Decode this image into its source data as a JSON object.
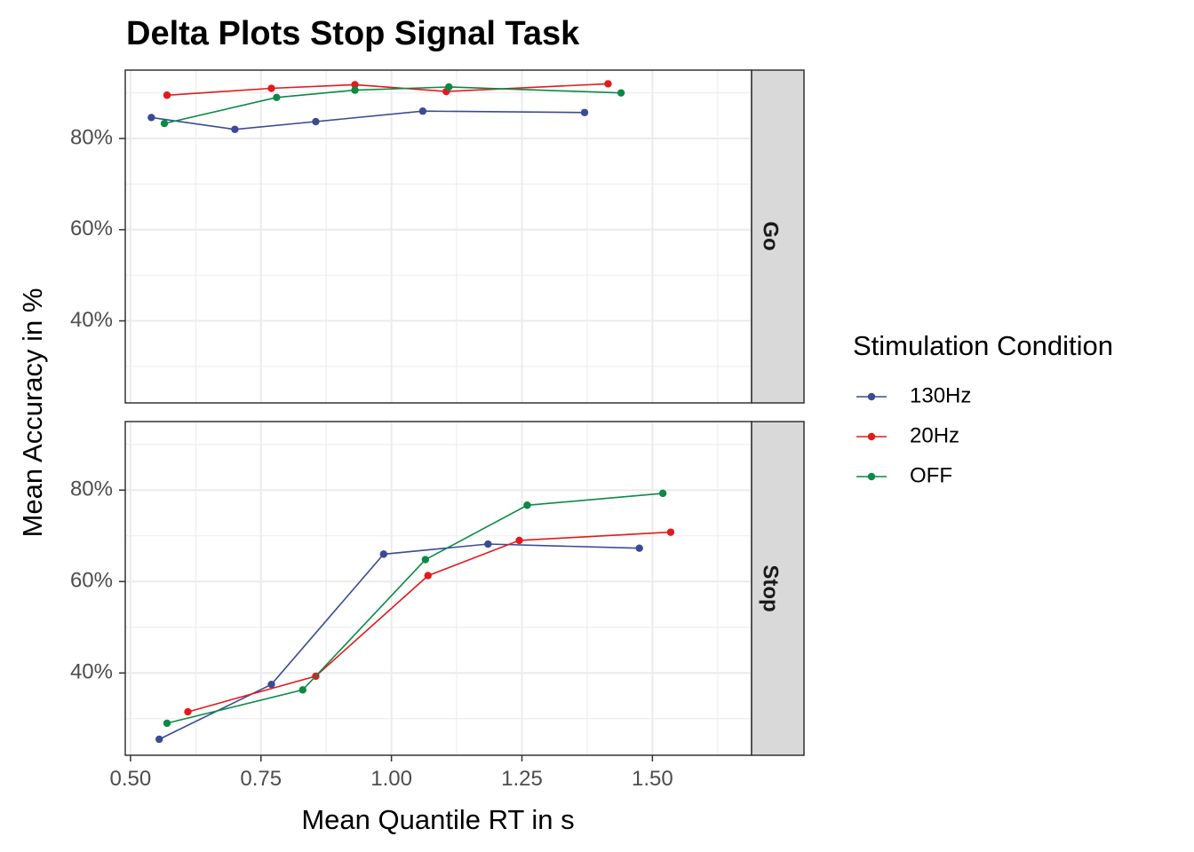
{
  "chart_data": {
    "type": "line",
    "title": "Delta Plots Stop Signal Task",
    "xlabel": "Mean Quantile RT in s",
    "ylabel": "Mean Accuracy in %",
    "xlim": [
      0.49,
      1.69
    ],
    "ylim": [
      22,
      95
    ],
    "x_ticks": [
      0.5,
      0.75,
      1.0,
      1.25,
      1.5
    ],
    "x_tick_labels": [
      "0.50",
      "0.75",
      "1.00",
      "1.25",
      "1.50"
    ],
    "y_ticks": [
      40,
      60,
      80
    ],
    "y_tick_labels": [
      "40%",
      "60%",
      "80%"
    ],
    "grid": true,
    "legend": {
      "title": "Stimulation Condition",
      "position": "right"
    },
    "facets": [
      {
        "label": "Go",
        "series": [
          {
            "name": "130Hz",
            "color": "#3b4a94",
            "x": [
              0.54,
              0.7,
              0.855,
              1.06,
              1.37
            ],
            "y": [
              84.6,
              82.0,
              83.7,
              86.0,
              85.7
            ]
          },
          {
            "name": "20Hz",
            "color": "#e31a1c",
            "x": [
              0.57,
              0.77,
              0.93,
              1.105,
              1.415
            ],
            "y": [
              89.5,
              91.0,
              91.8,
              90.3,
              92.0
            ]
          },
          {
            "name": "OFF",
            "color": "#0b8a45",
            "x": [
              0.565,
              0.78,
              0.93,
              1.11,
              1.44
            ],
            "y": [
              83.3,
              89.0,
              90.6,
              91.3,
              90.0
            ]
          }
        ]
      },
      {
        "label": "Stop",
        "series": [
          {
            "name": "130Hz",
            "color": "#3b4a94",
            "x": [
              0.555,
              0.77,
              0.985,
              1.185,
              1.475
            ],
            "y": [
              25.5,
              37.5,
              66.0,
              68.2,
              67.3
            ]
          },
          {
            "name": "20Hz",
            "color": "#e31a1c",
            "x": [
              0.61,
              0.855,
              1.07,
              1.245,
              1.535
            ],
            "y": [
              31.5,
              39.3,
              61.3,
              69.0,
              70.8
            ]
          },
          {
            "name": "OFF",
            "color": "#0b8a45",
            "x": [
              0.57,
              0.83,
              1.065,
              1.26,
              1.52
            ],
            "y": [
              29.0,
              36.3,
              64.8,
              76.7,
              79.3
            ]
          }
        ]
      }
    ]
  }
}
